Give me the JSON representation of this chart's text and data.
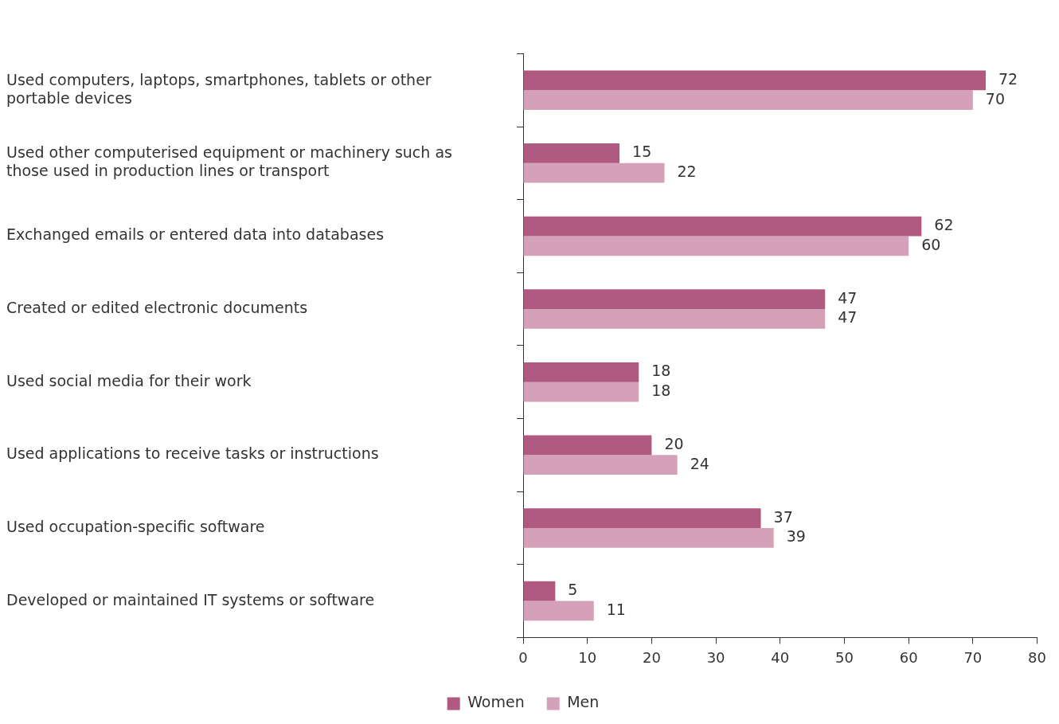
{
  "chart_data": {
    "type": "bar",
    "orientation": "horizontal",
    "categories": [
      "Used computers, laptops, smartphones, tablets or other portable devices",
      "Used other computerised equipment or machinery such as those used in production lines or transport",
      "Exchanged emails or entered data into databases",
      "Created or edited electronic documents",
      "Used social media for their work",
      "Used applications to receive tasks or instructions",
      "Used occupation-specific software",
      "Developed or maintained IT systems or software"
    ],
    "series": [
      {
        "name": "Women",
        "color": "#b05a82",
        "values": [
          72,
          15,
          62,
          47,
          18,
          20,
          37,
          5
        ]
      },
      {
        "name": "Men",
        "color": "#d4a1b8",
        "values": [
          70,
          22,
          60,
          47,
          18,
          24,
          39,
          11
        ]
      }
    ],
    "xlim": [
      0,
      80
    ],
    "xticks": [
      0,
      10,
      20,
      30,
      40,
      50,
      60,
      70,
      80
    ],
    "grid": false,
    "legend": "bottom",
    "data_labels": true
  }
}
